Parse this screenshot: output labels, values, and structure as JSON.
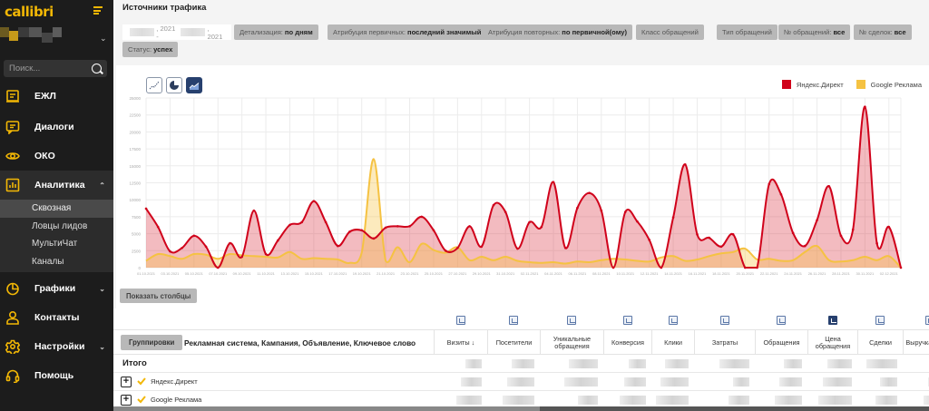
{
  "sidebar": {
    "logo": "callibri",
    "search_placeholder": "Поиск...",
    "items": [
      {
        "label": "ЕЖЛ",
        "icon": "journal-icon"
      },
      {
        "label": "Диалоги",
        "icon": "chat-icon"
      },
      {
        "label": "ОКО",
        "icon": "eye-icon"
      },
      {
        "label": "Аналитика",
        "icon": "bar-chart-icon",
        "expanded": true
      },
      {
        "label": "Графики",
        "icon": "pie-chart-icon"
      },
      {
        "label": "Контакты",
        "icon": "person-icon"
      },
      {
        "label": "Настройки",
        "icon": "gear-icon"
      },
      {
        "label": "Помощь",
        "icon": "headset-icon"
      }
    ],
    "analytics_sub": [
      {
        "label": "Сквозная",
        "selected": true
      },
      {
        "label": "Ловцы лидов"
      },
      {
        "label": "МультиЧат"
      },
      {
        "label": "Каналы"
      }
    ]
  },
  "header": {
    "title": "Источники трафика"
  },
  "filters": {
    "date_range_start_suffix": ", 2021 -",
    "date_range_end_suffix": ", 2021",
    "chips": [
      {
        "label": "Детализация:",
        "value": "по дням"
      },
      {
        "label": "Атрибуция первичных:",
        "value": "последний значимый"
      },
      {
        "label": "Атрибуция повторных:",
        "value": "по первичной(ому)"
      },
      {
        "label": "Класс обращений",
        "value": ""
      },
      {
        "label": "Тип обращений",
        "value": ""
      },
      {
        "label": "№ обращений:",
        "value": "все"
      },
      {
        "label": "№ сделок:",
        "value": "все"
      },
      {
        "label": "Статус:",
        "value": "успех"
      }
    ]
  },
  "chart_controls": {
    "types": [
      {
        "name": "line-chart-icon",
        "active": false
      },
      {
        "name": "pie-chart-icon",
        "active": false
      },
      {
        "name": "area-chart-icon",
        "active": true
      }
    ],
    "show_columns_button": "Показать столбцы"
  },
  "colors": {
    "brand": "#f2b705",
    "yandex": "#d0021b",
    "google": "#f5c242",
    "active_blue": "#27406e"
  },
  "chart_data": {
    "type": "area",
    "title": "",
    "xlabel": "",
    "ylabel": "",
    "ylim": [
      0,
      25000
    ],
    "yticks": [
      0,
      2500,
      5000,
      7500,
      10000,
      12500,
      15000,
      17500,
      20000,
      22500,
      25000
    ],
    "grid": true,
    "legend_position": "top-right",
    "x_tick_labels": [
      "01.10.2021",
      "03.10.2021",
      "05.10.2021",
      "07.10.2021",
      "09.10.2021",
      "11.10.2021",
      "13.10.2021",
      "15.10.2021",
      "17.10.2021",
      "19.10.2021",
      "21.10.2021",
      "23.10.2021",
      "25.10.2021",
      "27.10.2021",
      "29.10.2021",
      "31.10.2021",
      "02.11.2021",
      "04.11.2021",
      "06.11.2021",
      "08.11.2021",
      "10.11.2021",
      "12.11.2021",
      "14.11.2021",
      "16.11.2021",
      "18.11.2021",
      "20.11.2021",
      "22.11.2021",
      "24.11.2021",
      "26.11.2021",
      "28.11.2021",
      "30.11.2021",
      "02.12.2021"
    ],
    "x_start": "01.10.2021",
    "x_step_days": 1,
    "series": [
      {
        "name": "Яндекс.Директ",
        "color": "#d0021b",
        "values": [
          8700,
          6000,
          2400,
          2900,
          4700,
          3100,
          0,
          3600,
          1600,
          8400,
          2000,
          4000,
          6300,
          6700,
          9800,
          6700,
          3200,
          5300,
          5500,
          4300,
          5900,
          6100,
          6100,
          7500,
          5500,
          2500,
          2900,
          6100,
          3100,
          9200,
          8200,
          2800,
          6700,
          6000,
          12600,
          2900,
          8800,
          11000,
          8400,
          0,
          8200,
          6800,
          4100,
          0,
          7400,
          15200,
          4900,
          4400,
          3100,
          4900,
          0,
          0,
          12300,
          10800,
          5100,
          3200,
          7000,
          12000,
          4700,
          5600,
          23700,
          3600,
          6000,
          0
        ]
      },
      {
        "name": "Google Реклама",
        "color": "#f5c242",
        "values": [
          1000,
          2000,
          1700,
          1300,
          2000,
          1900,
          1300,
          2000,
          1800,
          1700,
          1600,
          1500,
          2300,
          1300,
          1400,
          1300,
          1200,
          700,
          2200,
          16000,
          1000,
          3000,
          800,
          3500,
          2600,
          2200,
          3000,
          1100,
          1600,
          1100,
          1600,
          1000,
          800,
          700,
          800,
          600,
          900,
          800,
          1100,
          1300,
          1200,
          1000,
          900,
          1500,
          1700,
          1000,
          1200,
          1700,
          2100,
          2300,
          2800,
          1200,
          1300,
          1000,
          1100,
          2300,
          3200,
          1100,
          900,
          1100,
          1600,
          1100,
          1700,
          0
        ]
      }
    ]
  },
  "table": {
    "grouping_button": "Группировки",
    "grouping_label": "Рекламная система, Кампания, Объявление, Ключевое слово",
    "columns": [
      {
        "label": "Визиты ↓",
        "icon_active": false
      },
      {
        "label": "Посетители",
        "icon_active": false
      },
      {
        "label": "Уникальные обращения",
        "icon_active": false
      },
      {
        "label": "Конверсия",
        "icon_active": false
      },
      {
        "label": "Клики",
        "icon_active": false
      },
      {
        "label": "Затраты",
        "icon_active": false
      },
      {
        "label": "Обращения",
        "icon_active": false
      },
      {
        "label": "Цена обращения",
        "icon_active": true
      },
      {
        "label": "Сделки",
        "icon_active": false
      },
      {
        "label": "Выручка сделки",
        "icon_active": false
      }
    ],
    "total_label": "Итого",
    "rows": [
      {
        "label": "Яндекс.Директ"
      },
      {
        "label": "Google Реклама"
      }
    ]
  }
}
